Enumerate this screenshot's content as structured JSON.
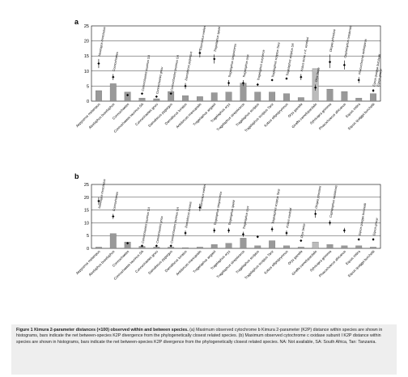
{
  "panels": [
    {
      "letter": "a",
      "chart_data": {
        "type": "bar",
        "yticks": [
          0,
          5,
          10,
          15,
          20,
          25
        ],
        "ylim": [
          0,
          25
        ],
        "grid": true,
        "categories": [
          "Aepyceros melampus",
          "Alcelaphus buselaphus",
          "Connochaetes",
          "Connochaetes taurinus SA",
          "Connochaetes gnou",
          "Damaliscus pygargus",
          "Damaliscus lunatus",
          "Antidorcas marsupialis",
          "Tragelaphus angasii",
          "Tragelaphus oryx",
          "Tragelaphus strepsiceros",
          "Tragelaphus scriptus",
          "Tragelaphus scriptus Tanz",
          "Kobus ellipsiprymnus",
          "Oryx gazella",
          "Giraffa camelopardalis",
          "Sylvicapra grimmia",
          "Phacochoerus africanus",
          "Equus zebra",
          "Equus quagga burchellii"
        ],
        "series": [
          {
            "values": [
              3.5,
              5.8,
              3.0,
              1.0,
              0.8,
              3.2,
              1.8,
              1.5,
              2.8,
              3.0,
              6.0,
              3.0,
              3.0,
              2.5,
              1.2,
              10.8,
              4.0,
              3.2,
              1.0,
              2.5
            ]
          },
          {
            "values": [
              12.5,
              8.0,
              2.0,
              2.5,
              1.5,
              2.5,
              5.0,
              16.0,
              14.0,
              6.0,
              6.0,
              5.5,
              7.0,
              7.5,
              8.0,
              4.5,
              13.0,
              12.0,
              7.0,
              3.5
            ]
          }
        ],
        "error_low": [
          11.0,
          7.0,
          null,
          null,
          null,
          null,
          4.0,
          14.5,
          12.5,
          5.0,
          5.0,
          5.0,
          null,
          null,
          7.0,
          3.5,
          11.0,
          10.5,
          6.0,
          3.0
        ],
        "error_high": [
          14.0,
          9.0,
          null,
          null,
          null,
          null,
          6.0,
          17.5,
          15.5,
          7.0,
          7.0,
          6.0,
          null,
          null,
          9.0,
          5.5,
          15.5,
          13.5,
          8.0,
          4.0
        ],
        "annotations": [
          {
            "index": 0,
            "text": "Neotragus moschatus"
          },
          {
            "index": 1,
            "text": "Connochaetes"
          },
          {
            "index": 3,
            "text": "Connochaetes taurinus SA"
          },
          {
            "index": 4,
            "text": "Connochaetes gnou"
          },
          {
            "index": 5,
            "text": "Connochaetes taurinus SA"
          },
          {
            "index": 6,
            "text": "Damaliscus pygargus"
          },
          {
            "index": 7,
            "text": "Litocranius walleri"
          },
          {
            "index": 8,
            "text": "Tragelaphus spekii"
          },
          {
            "index": 9,
            "text": "Tragelaphus strepsiceros"
          },
          {
            "index": 10,
            "text": "Tragelaphus oryx"
          },
          {
            "index": 11,
            "text": "Tragelaphus eurycerus"
          },
          {
            "index": 12,
            "text": "Tragelaphus scriptus Tanz"
          },
          {
            "index": 13,
            "text": "Tragelaphus scriptus SA"
          },
          {
            "index": 14,
            "text": "Kobus leche x K. vardonii"
          },
          {
            "index": 15,
            "text": "Oryx beisa"
          },
          {
            "index": 16,
            "text": "Okapia johnstoni"
          },
          {
            "index": 17,
            "text": "Cephalophus natalensis"
          },
          {
            "index": 18,
            "text": "Phacochoerus aethiopicus"
          },
          {
            "index": 19,
            "text": "Equus quagga burchellii"
          },
          {
            "index": 19,
            "text": "Equus grevyi"
          }
        ]
      }
    },
    {
      "letter": "b",
      "chart_data": {
        "type": "bar",
        "yticks": [
          0,
          5,
          10,
          15,
          20,
          25
        ],
        "ylim": [
          0,
          25
        ],
        "grid": true,
        "categories": [
          "Aepyceros melampus",
          "Alcelaphus buselaphus",
          "Connochaetes",
          "Connochaetes taurinus SA",
          "Connochaetes gnou",
          "Damaliscus pygargus",
          "Damaliscus lunatus",
          "Antidorcas marsupialis",
          "Tragelaphus angasii",
          "Tragelaphus oryx",
          "Tragelaphus strepsiceros",
          "Tragelaphus scriptus",
          "Tragelaphus scriptus Tanz",
          "Kobus ellipsiprymnus",
          "Oryx gazella",
          "Giraffa camelopardalis",
          "Sylvicapra grimmia",
          "Phacochoerus africanus",
          "Equus zebra",
          "Equus quagga burchellii"
        ],
        "series": [
          {
            "values": [
              0.5,
              5.8,
              2.5,
              0.8,
              0.5,
              0.5,
              0.3,
              0.5,
              1.5,
              2.0,
              4.0,
              1.0,
              3.0,
              1.0,
              0.5,
              2.5,
              1.5,
              1.0,
              1.0,
              0.5
            ]
          },
          {
            "values": [
              18.5,
              12.5,
              2.0,
              1.0,
              1.0,
              1.0,
              6.0,
              16.0,
              7.0,
              7.0,
              5.5,
              4.5,
              7.5,
              6.0,
              3.0,
              13.5,
              10.0,
              7.0,
              3.5,
              3.5
            ]
          }
        ],
        "error_low": [
          17.0,
          11.5,
          null,
          null,
          null,
          null,
          5.0,
          14.5,
          6.0,
          6.0,
          4.5,
          null,
          6.5,
          5.0,
          null,
          12.0,
          9.0,
          6.0,
          3.0,
          3.0
        ],
        "error_high": [
          20.0,
          13.5,
          null,
          null,
          null,
          null,
          7.0,
          17.5,
          8.0,
          8.0,
          6.5,
          null,
          8.5,
          7.0,
          null,
          15.0,
          11.0,
          8.0,
          4.0,
          4.0
        ],
        "annotations": [
          {
            "index": 0,
            "text": "Neotragus moschatus"
          },
          {
            "index": 1,
            "text": "Connochaetes"
          },
          {
            "index": 3,
            "text": "Connochaetes taurinus SA"
          },
          {
            "index": 4,
            "text": "Connochaetes gnou"
          },
          {
            "index": 5,
            "text": "Connochaetes taurinus SA"
          },
          {
            "index": 6,
            "text": "Damaliscus lunatus"
          },
          {
            "index": 7,
            "text": "Litocranius walleri"
          },
          {
            "index": 8,
            "text": "Tragelaphus strepsiceros"
          },
          {
            "index": 9,
            "text": "Tragelaphus spekii"
          },
          {
            "index": 10,
            "text": "Tragelaphus oryx"
          },
          {
            "index": 12,
            "text": "Tragelaphus scriptus Tanz"
          },
          {
            "index": 13,
            "text": "Kobus vardonii"
          },
          {
            "index": 14,
            "text": "Oryx beisa"
          },
          {
            "index": 15,
            "text": "Okapia johnstoni"
          },
          {
            "index": 16,
            "text": "Cephalophus natalensis"
          },
          {
            "index": 18,
            "text": "Equus quagga burchellii"
          },
          {
            "index": 19,
            "text": "Equus grevyi"
          }
        ]
      }
    }
  ],
  "caption": {
    "lead": "Figure 1 Kimura 2-parameter distances (×100) observed within and between species.",
    "body": " (a) Maximum observed cytochrome b Kimura 2-parameter (K2P) distance within species are shown in histograms, bars indicate the net between-species K2P divergence from the phylogenetically closest related species. (b) Maximum observed cytochrome c oxidase subunit I K2P distance within species are shown in histograms, bars indicate the net between-species K2P divergence from the phylogenetically closest related species. NA: Not available, SA: South Africa, Tan: Tanzania."
  }
}
